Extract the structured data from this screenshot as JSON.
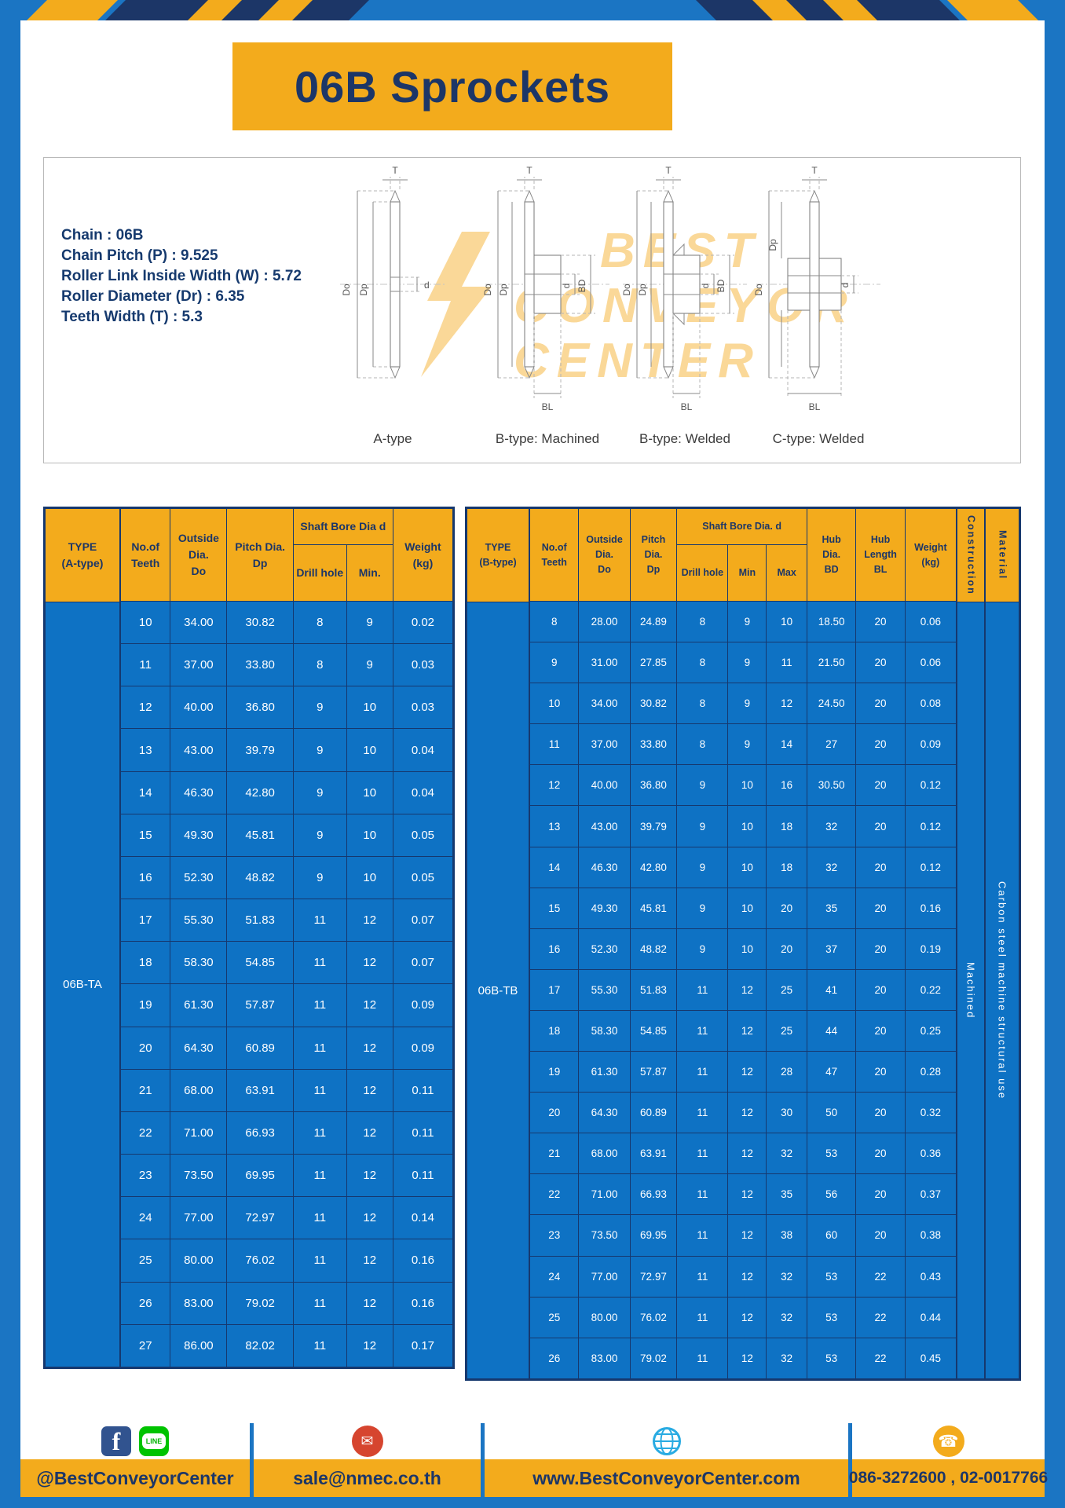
{
  "title": "06B Sprockets",
  "specs": {
    "lines": [
      "Chain  :  06B",
      "Chain Pitch (P)  :  9.525",
      "Roller Link Inside Width (W)  :  5.72",
      "Roller Diameter (Dr)  :  6.35",
      "Teeth Width (T)  :  5.3"
    ]
  },
  "drawings": {
    "watermark_lines": [
      "BEST",
      "CONVEYOR",
      "CENTER"
    ],
    "labels": [
      "A-type",
      "B-type: Machined",
      "B-type: Welded",
      "C-type: Welded"
    ],
    "dims": {
      "t": "T",
      "do": "Do",
      "dp": "Dp",
      "d": "d",
      "bd": "BD",
      "bl": "BL"
    }
  },
  "table_a": {
    "type_label": "06B-TA",
    "headers": {
      "type": "TYPE\n(A-type)",
      "teeth": "No.of\nTeeth",
      "outside": "Outside\nDia.\nDo",
      "pitch": "Pitch Dia.\nDp",
      "shaft": "Shaft Bore Dia d",
      "drill": "Drill hole",
      "min": "Min.",
      "weight": "Weight\n(kg)"
    },
    "rows": [
      [
        "10",
        "34.00",
        "30.82",
        "8",
        "9",
        "0.02"
      ],
      [
        "11",
        "37.00",
        "33.80",
        "8",
        "9",
        "0.03"
      ],
      [
        "12",
        "40.00",
        "36.80",
        "9",
        "10",
        "0.03"
      ],
      [
        "13",
        "43.00",
        "39.79",
        "9",
        "10",
        "0.04"
      ],
      [
        "14",
        "46.30",
        "42.80",
        "9",
        "10",
        "0.04"
      ],
      [
        "15",
        "49.30",
        "45.81",
        "9",
        "10",
        "0.05"
      ],
      [
        "16",
        "52.30",
        "48.82",
        "9",
        "10",
        "0.05"
      ],
      [
        "17",
        "55.30",
        "51.83",
        "11",
        "12",
        "0.07"
      ],
      [
        "18",
        "58.30",
        "54.85",
        "11",
        "12",
        "0.07"
      ],
      [
        "19",
        "61.30",
        "57.87",
        "11",
        "12",
        "0.09"
      ],
      [
        "20",
        "64.30",
        "60.89",
        "11",
        "12",
        "0.09"
      ],
      [
        "21",
        "68.00",
        "63.91",
        "11",
        "12",
        "0.11"
      ],
      [
        "22",
        "71.00",
        "66.93",
        "11",
        "12",
        "0.11"
      ],
      [
        "23",
        "73.50",
        "69.95",
        "11",
        "12",
        "0.11"
      ],
      [
        "24",
        "77.00",
        "72.97",
        "11",
        "12",
        "0.14"
      ],
      [
        "25",
        "80.00",
        "76.02",
        "11",
        "12",
        "0.16"
      ],
      [
        "26",
        "83.00",
        "79.02",
        "11",
        "12",
        "0.16"
      ],
      [
        "27",
        "86.00",
        "82.02",
        "11",
        "12",
        "0.17"
      ]
    ]
  },
  "table_b": {
    "type_label": "06B-TB",
    "headers": {
      "type": "TYPE\n(B-type)",
      "teeth": "No.of\nTeeth",
      "outside": "Outside\nDia.\nDo",
      "pitch": "Pitch\nDia.\nDp",
      "shaft": "Shaft Bore Dia.  d",
      "drill": "Drill hole",
      "min": "Min",
      "max": "Max",
      "hub_dia": "Hub\nDia.\nBD",
      "hub_len": "Hub\nLength\nBL",
      "weight": "Weight\n(kg)",
      "construction": "Construction",
      "material": "Material"
    },
    "construction_value": "Machined",
    "material_value": "Carbon steel machine structural use",
    "rows": [
      [
        "8",
        "28.00",
        "24.89",
        "8",
        "9",
        "10",
        "18.50",
        "20",
        "0.06"
      ],
      [
        "9",
        "31.00",
        "27.85",
        "8",
        "9",
        "11",
        "21.50",
        "20",
        "0.06"
      ],
      [
        "10",
        "34.00",
        "30.82",
        "8",
        "9",
        "12",
        "24.50",
        "20",
        "0.08"
      ],
      [
        "11",
        "37.00",
        "33.80",
        "8",
        "9",
        "14",
        "27",
        "20",
        "0.09"
      ],
      [
        "12",
        "40.00",
        "36.80",
        "9",
        "10",
        "16",
        "30.50",
        "20",
        "0.12"
      ],
      [
        "13",
        "43.00",
        "39.79",
        "9",
        "10",
        "18",
        "32",
        "20",
        "0.12"
      ],
      [
        "14",
        "46.30",
        "42.80",
        "9",
        "10",
        "18",
        "32",
        "20",
        "0.12"
      ],
      [
        "15",
        "49.30",
        "45.81",
        "9",
        "10",
        "20",
        "35",
        "20",
        "0.16"
      ],
      [
        "16",
        "52.30",
        "48.82",
        "9",
        "10",
        "20",
        "37",
        "20",
        "0.19"
      ],
      [
        "17",
        "55.30",
        "51.83",
        "11",
        "12",
        "25",
        "41",
        "20",
        "0.22"
      ],
      [
        "18",
        "58.30",
        "54.85",
        "11",
        "12",
        "25",
        "44",
        "20",
        "0.25"
      ],
      [
        "19",
        "61.30",
        "57.87",
        "11",
        "12",
        "28",
        "47",
        "20",
        "0.28"
      ],
      [
        "20",
        "64.30",
        "60.89",
        "11",
        "12",
        "30",
        "50",
        "20",
        "0.32"
      ],
      [
        "21",
        "68.00",
        "63.91",
        "11",
        "12",
        "32",
        "53",
        "20",
        "0.36"
      ],
      [
        "22",
        "71.00",
        "66.93",
        "11",
        "12",
        "35",
        "56",
        "20",
        "0.37"
      ],
      [
        "23",
        "73.50",
        "69.95",
        "11",
        "12",
        "38",
        "60",
        "20",
        "0.38"
      ],
      [
        "24",
        "77.00",
        "72.97",
        "11",
        "12",
        "32",
        "53",
        "22",
        "0.43"
      ],
      [
        "25",
        "80.00",
        "76.02",
        "11",
        "12",
        "32",
        "53",
        "22",
        "0.44"
      ],
      [
        "26",
        "83.00",
        "79.02",
        "11",
        "12",
        "32",
        "53",
        "22",
        "0.45"
      ]
    ]
  },
  "footer": {
    "facebook_label": "f",
    "line_label": "LINE",
    "mail_glyph": "✉",
    "phone_glyph": "☎",
    "facebook_handle": "@BestConveyorCenter",
    "email": "sale@nmec.co.th",
    "website": "www.BestConveyorCenter.com",
    "phones": "086-3272600 , 02-0017766"
  },
  "colors": {
    "frame_blue": "#1b75c3",
    "navy": "#1c3667",
    "yellow": "#f3ab1c",
    "table_body_blue": "#0e72c4"
  }
}
